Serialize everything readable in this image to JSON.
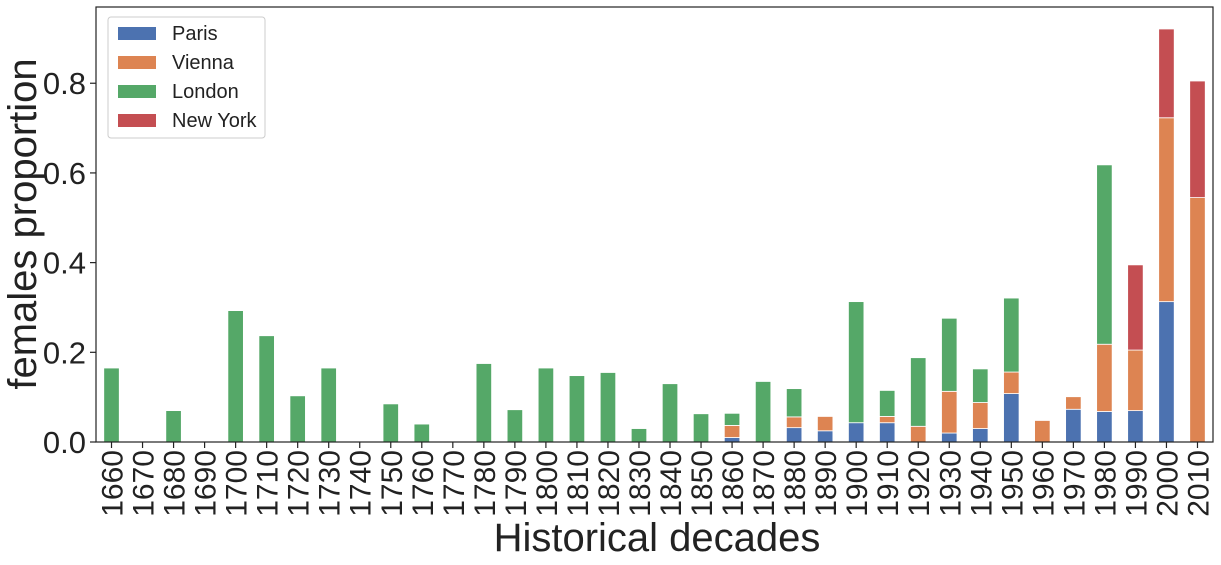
{
  "chart_data": {
    "type": "bar",
    "stacked": true,
    "xlabel": "Historical decades",
    "ylabel": "females proportion",
    "ylim": [
      0,
      0.97
    ],
    "yticks": [
      0.0,
      0.2,
      0.4,
      0.6,
      0.8
    ],
    "ytick_labels": [
      "0.0",
      "0.2",
      "0.4",
      "0.6",
      "0.8"
    ],
    "grid": false,
    "legend": "top-left",
    "categories": [
      "1660",
      "1670",
      "1680",
      "1690",
      "1700",
      "1710",
      "1720",
      "1730",
      "1740",
      "1750",
      "1760",
      "1770",
      "1780",
      "1790",
      "1800",
      "1810",
      "1820",
      "1830",
      "1840",
      "1850",
      "1860",
      "1870",
      "1880",
      "1890",
      "1900",
      "1910",
      "1920",
      "1930",
      "1940",
      "1950",
      "1960",
      "1970",
      "1980",
      "1990",
      "2000",
      "2010"
    ],
    "series": [
      {
        "name": "Paris",
        "color": "#4c72b0",
        "values": [
          0,
          0,
          0,
          0,
          0,
          0,
          0,
          0,
          0,
          0,
          0,
          0,
          0,
          0,
          0,
          0,
          0,
          0,
          0,
          0,
          0.01,
          0,
          0.032,
          0.025,
          0.043,
          0.043,
          0,
          0.02,
          0.03,
          0.108,
          0,
          0.073,
          0.068,
          0.07,
          0.313,
          0
        ]
      },
      {
        "name": "Vienna",
        "color": "#dd8452",
        "values": [
          0,
          0,
          0,
          0,
          0,
          0,
          0,
          0,
          0,
          0,
          0,
          0,
          0,
          0,
          0,
          0,
          0,
          0,
          0,
          0,
          0.027,
          0,
          0.024,
          0.032,
          0,
          0.014,
          0.035,
          0.093,
          0.058,
          0.048,
          0.048,
          0.028,
          0.15,
          0.135,
          0.41,
          0.545
        ]
      },
      {
        "name": "London",
        "color": "#55a868",
        "values": [
          0.165,
          0,
          0.07,
          0,
          0.293,
          0.237,
          0.103,
          0.165,
          0,
          0.085,
          0.04,
          0,
          0.175,
          0.072,
          0.165,
          0.148,
          0.155,
          0.03,
          0.13,
          0.063,
          0.027,
          0.135,
          0.063,
          0,
          0.27,
          0.058,
          0.153,
          0.163,
          0.075,
          0.165,
          0,
          0,
          0.4,
          0,
          0,
          0
        ]
      },
      {
        "name": "New York",
        "color": "#c44e52",
        "values": [
          0,
          0,
          0,
          0,
          0,
          0,
          0,
          0,
          0,
          0,
          0,
          0,
          0,
          0,
          0,
          0,
          0,
          0,
          0,
          0,
          0,
          0,
          0,
          0,
          0,
          0,
          0,
          0,
          0,
          0,
          0,
          0,
          0,
          0.19,
          0.198,
          0.26
        ]
      }
    ]
  }
}
